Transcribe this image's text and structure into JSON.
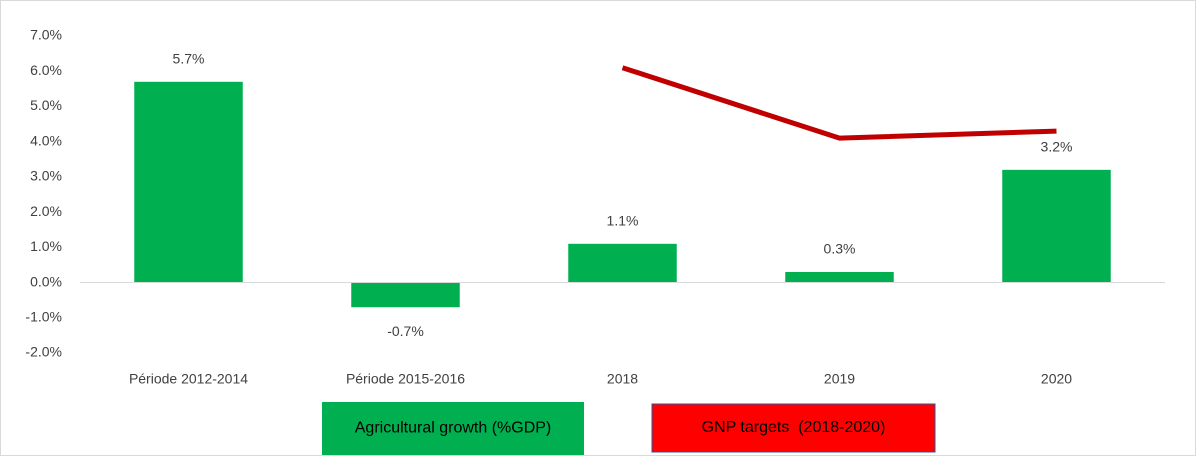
{
  "chart_data": {
    "type": "bar",
    "categories": [
      "Période 2012-2014",
      "Période 2015-2016",
      "2018",
      "2019",
      "2020"
    ],
    "series": [
      {
        "name": "Agricultural growth (%GDP)",
        "type": "bar",
        "color": "#00b050",
        "values": [
          5.7,
          -0.7,
          1.1,
          0.3,
          3.2
        ],
        "value_labels": [
          "5.7%",
          "-0.7%",
          "1.1%",
          "0.3%",
          "3.2%"
        ]
      },
      {
        "name": "GNP targets  (2018-2020)",
        "type": "line",
        "color": "#c00000",
        "values": [
          null,
          null,
          6.1,
          4.1,
          4.3
        ]
      }
    ],
    "ylim": [
      -2,
      7
    ],
    "yticks": [
      {
        "value": -2,
        "label": "-2.0%"
      },
      {
        "value": -1,
        "label": "-1.0%"
      },
      {
        "value": 0,
        "label": "0.0%"
      },
      {
        "value": 1,
        "label": "1.0%"
      },
      {
        "value": 2,
        "label": "2.0%"
      },
      {
        "value": 3,
        "label": "3.0%"
      },
      {
        "value": 4,
        "label": "4.0%"
      },
      {
        "value": 5,
        "label": "5.0%"
      },
      {
        "value": 6,
        "label": "6.0%"
      },
      {
        "value": 7,
        "label": "7.0%"
      }
    ],
    "grid": false
  }
}
